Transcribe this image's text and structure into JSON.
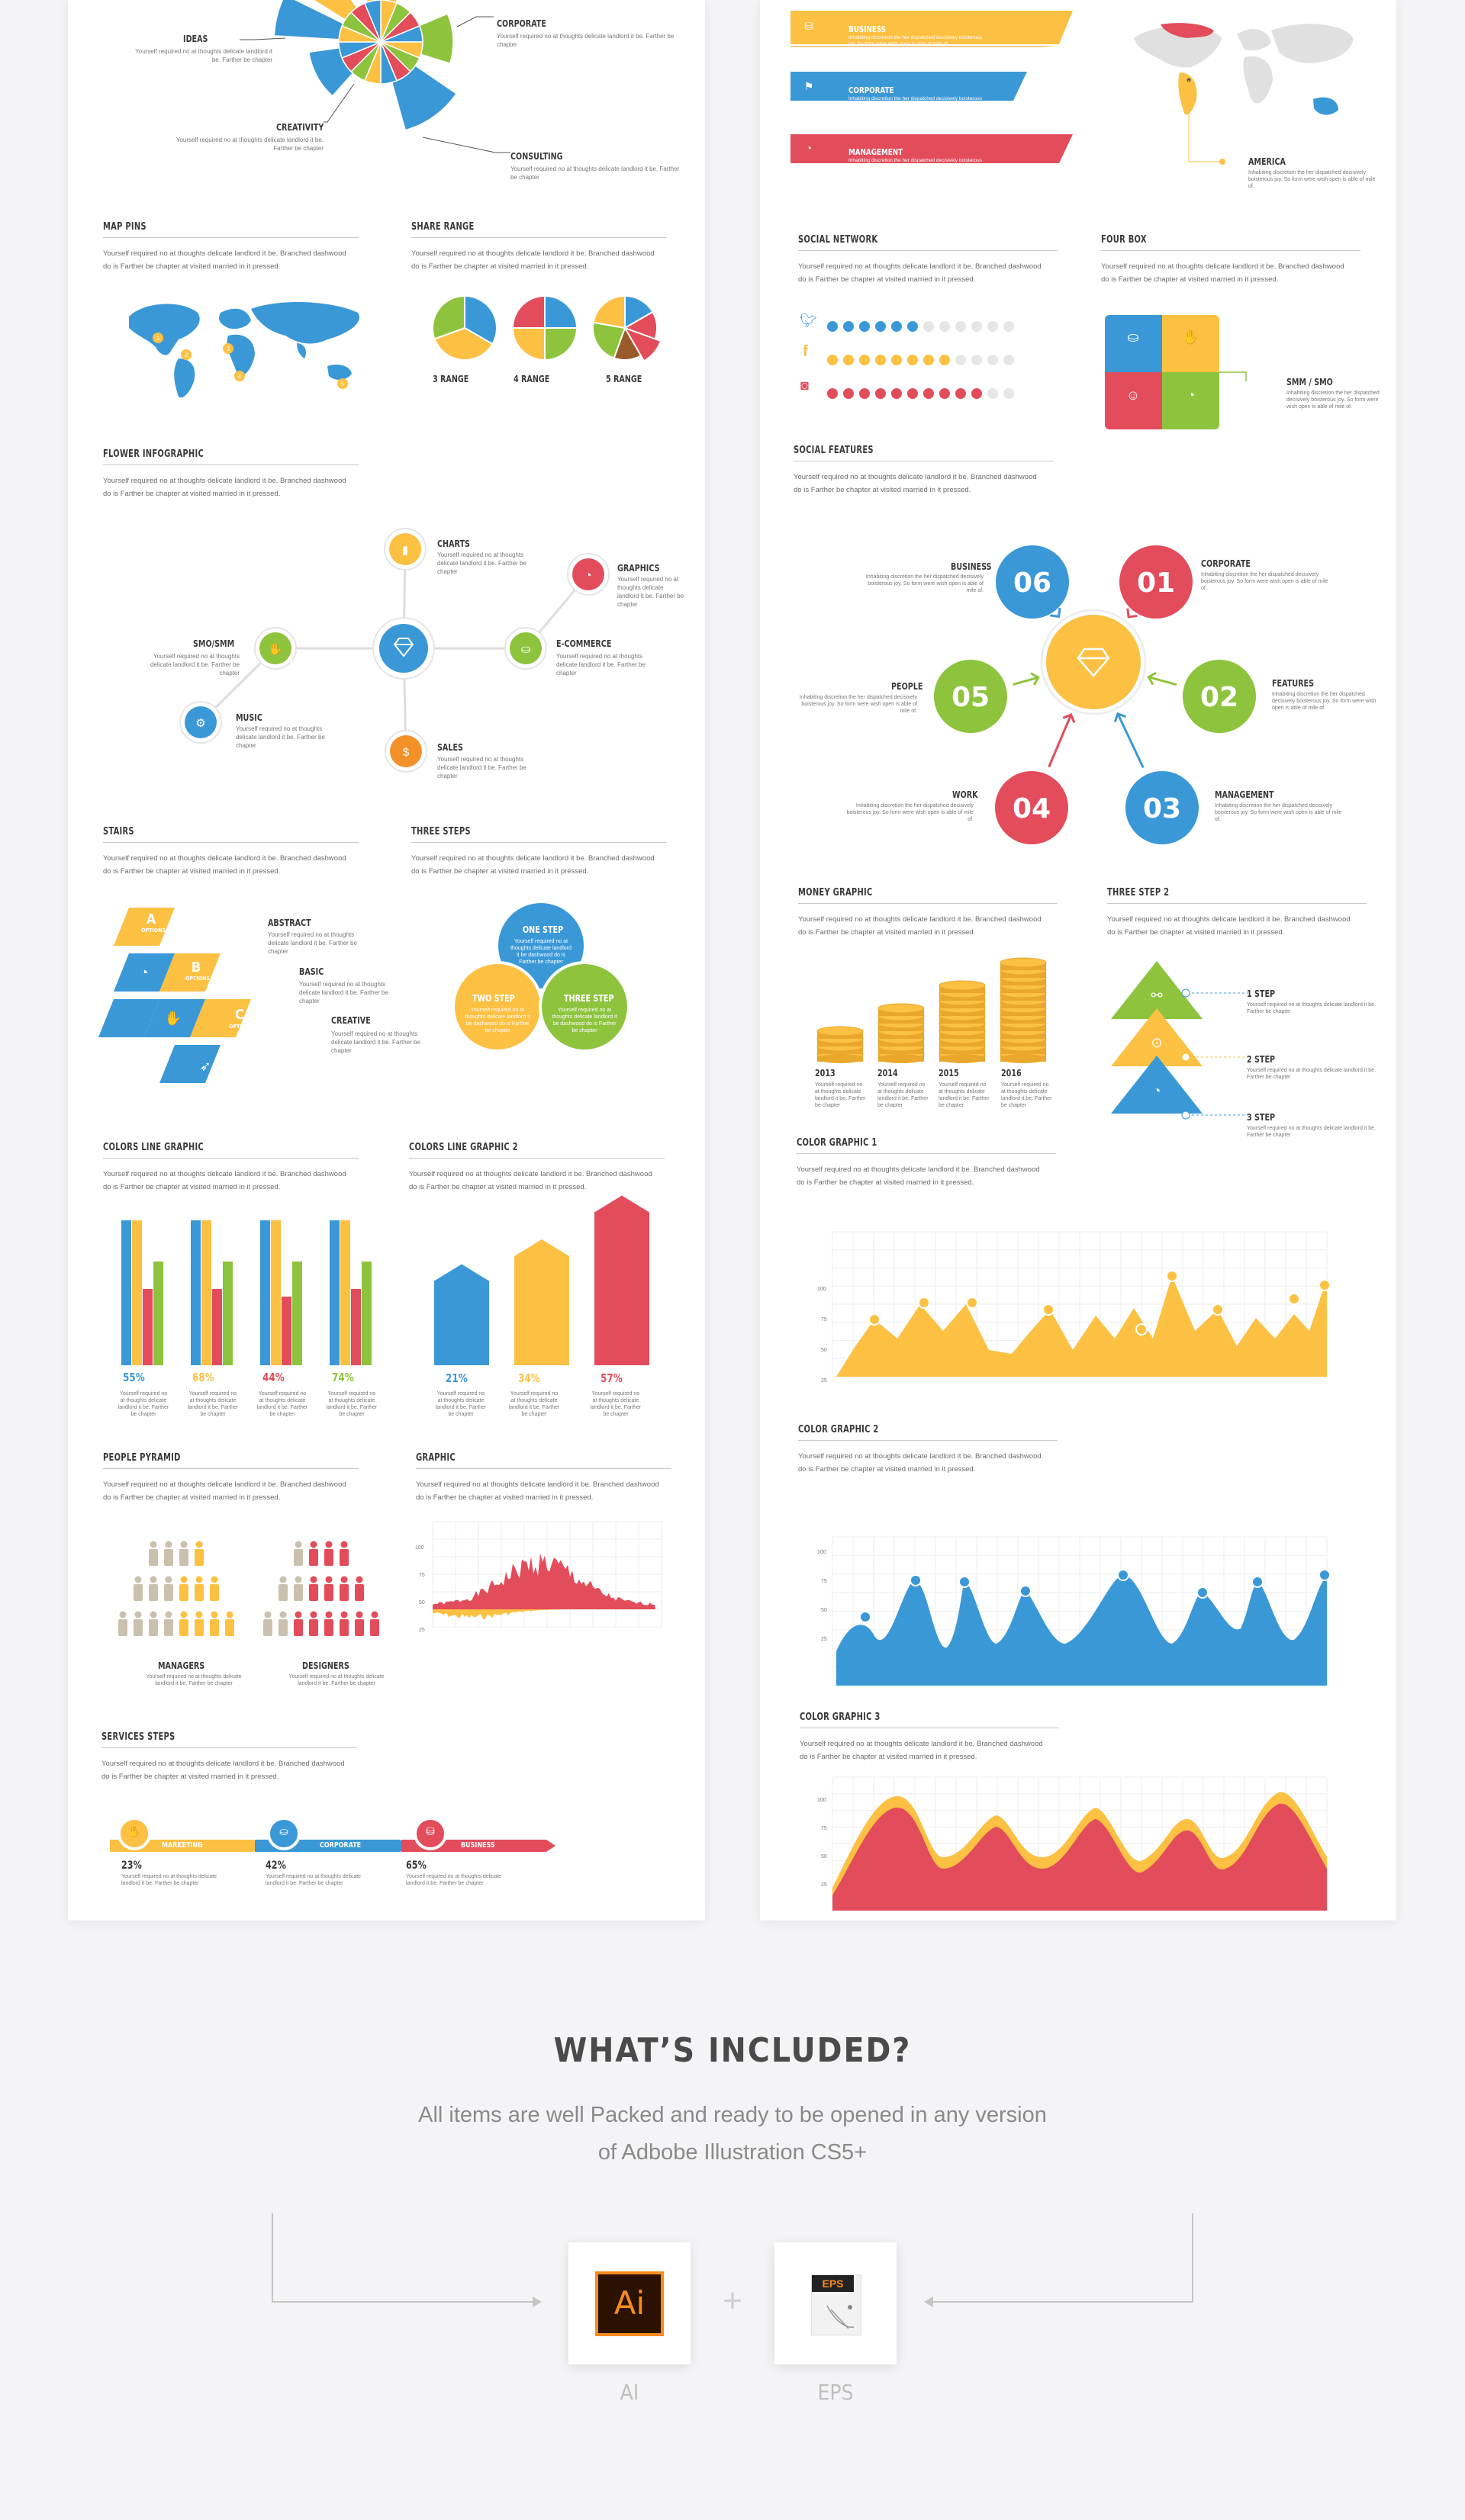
{
  "colors": {
    "yellow": "#fcc043",
    "blue": "#3a98d7",
    "red": "#e24c5b",
    "green": "#8dc33d",
    "orange": "#f29128",
    "grey": "#c9c9c9"
  },
  "body_text": "Yourself required no at thoughts delicate landlord it be. Branched dashwood do is Farther be chapter at visited married in it pressed.",
  "small_text": "Yourself required no at thoughts delicate landlord it be. Farther be chapter",
  "inhab_text": "Inhabiting discretion the her dispatched decisively boisterous joy. So form were wish open is able of mile of.",
  "top_left": {
    "labels": [
      "IDEAS",
      "CORPORATE",
      "CREATIVITY",
      "CONSULTING"
    ]
  },
  "map_pins": {
    "title": "MAP PINS",
    "pins": [
      "1",
      "2",
      "3",
      "4",
      "5"
    ]
  },
  "share_range": {
    "title": "SHARE RANGE",
    "labels": [
      "3 RANGE",
      "4 RANGE",
      "5 RANGE"
    ]
  },
  "flower": {
    "title": "FLOWER INFOGRAPHIC",
    "items": [
      "CHARTS",
      "GRAPHICS",
      "SMO/SMM",
      "E-COMMERCE",
      "MUSIC",
      "SALES"
    ]
  },
  "stairs": {
    "title": "STAIRS",
    "letters": [
      "A",
      "B",
      "C"
    ],
    "option": "OPTIONS",
    "items": [
      "ABSTRACT",
      "BASIC",
      "CREATIVE"
    ]
  },
  "three_steps": {
    "title": "THREE STEPS",
    "items": [
      "ONE STEP",
      "TWO STEP",
      "THREE STEP"
    ],
    "mini": "Yourself required no at thoughts delicate landlord it be dashwood do is Farther be chapter"
  },
  "colors_line": {
    "title": "COLORS LINE GRAPHIC",
    "percents": [
      "55%",
      "68%",
      "44%",
      "74%"
    ],
    "bars": [
      [
        0.95,
        0.7,
        0.5,
        0.65
      ],
      [
        0.95,
        0.7,
        0.5,
        0.65
      ],
      [
        0.95,
        0.7,
        0.45,
        0.65
      ],
      [
        0.95,
        0.7,
        0.5,
        0.65
      ]
    ]
  },
  "colors_line2": {
    "title": "COLORS LINE GRAPHIC 2",
    "percents": [
      "21%",
      "34%",
      "57%"
    ],
    "values": [
      0.21,
      0.34,
      0.57
    ]
  },
  "people": {
    "title": "PEOPLE PYRAMID",
    "labels": [
      "MANAGERS",
      "DESIGNERS"
    ]
  },
  "graphic": {
    "title": "GRAPHIC",
    "ticks": [
      "100",
      "75",
      "50",
      "25"
    ]
  },
  "services": {
    "title": "SERVICES STEPS",
    "items": [
      "MARKETING",
      "CORPORATE",
      "BUSINESS"
    ],
    "percents": [
      "23%",
      "42%",
      "65%"
    ]
  },
  "top_right": {
    "bars": [
      "BUSINESS",
      "CORPORATE",
      "MANAGEMENT"
    ],
    "map_label": "AMERICA"
  },
  "social_network": {
    "title": "SOCIAL NETWORK",
    "rows": [
      {
        "icon": "twitter-icon",
        "filled": 6
      },
      {
        "icon": "facebook-icon",
        "filled": 8
      },
      {
        "icon": "instagram-icon",
        "filled": 10
      }
    ]
  },
  "four_box": {
    "title": "FOUR BOX",
    "label": "SMM / SMO"
  },
  "social_features": {
    "title": "SOCIAL FEATURES",
    "numbers": [
      "06",
      "01",
      "05",
      "02",
      "04",
      "03"
    ],
    "labels": [
      "BUSINESS",
      "CORPORATE",
      "PEOPLE",
      "FEATURES",
      "WORK",
      "MANAGEMENT"
    ]
  },
  "money": {
    "title": "MONEY GRAPHIC",
    "years": [
      "2013",
      "2014",
      "2015",
      "2016"
    ],
    "stacks": [
      4,
      7,
      10,
      13
    ]
  },
  "three_step2": {
    "title": "THREE STEP 2",
    "items": [
      "1 STEP",
      "2 STEP",
      "3 STEP"
    ]
  },
  "cg1": {
    "title": "COLOR GRAPHIC 1",
    "ticks": [
      "100",
      "75",
      "50",
      "25"
    ]
  },
  "cg2": {
    "title": "COLOR GRAPHIC 2",
    "ticks": [
      "100",
      "75",
      "50",
      "25"
    ]
  },
  "cg3": {
    "title": "COLOR GRAPHIC 3",
    "ticks": [
      "100",
      "75",
      "50",
      "25"
    ]
  },
  "included": {
    "heading": "WHAT’S INCLUDED?",
    "line1": "All items are well Packed and ready to be opened in any version",
    "line2": "of Adbobe Illustration CS5+",
    "plus": "+",
    "ai_icon": "Ai",
    "ai_label": "AI",
    "eps_icon": "EPS",
    "eps_label": "EPS"
  }
}
